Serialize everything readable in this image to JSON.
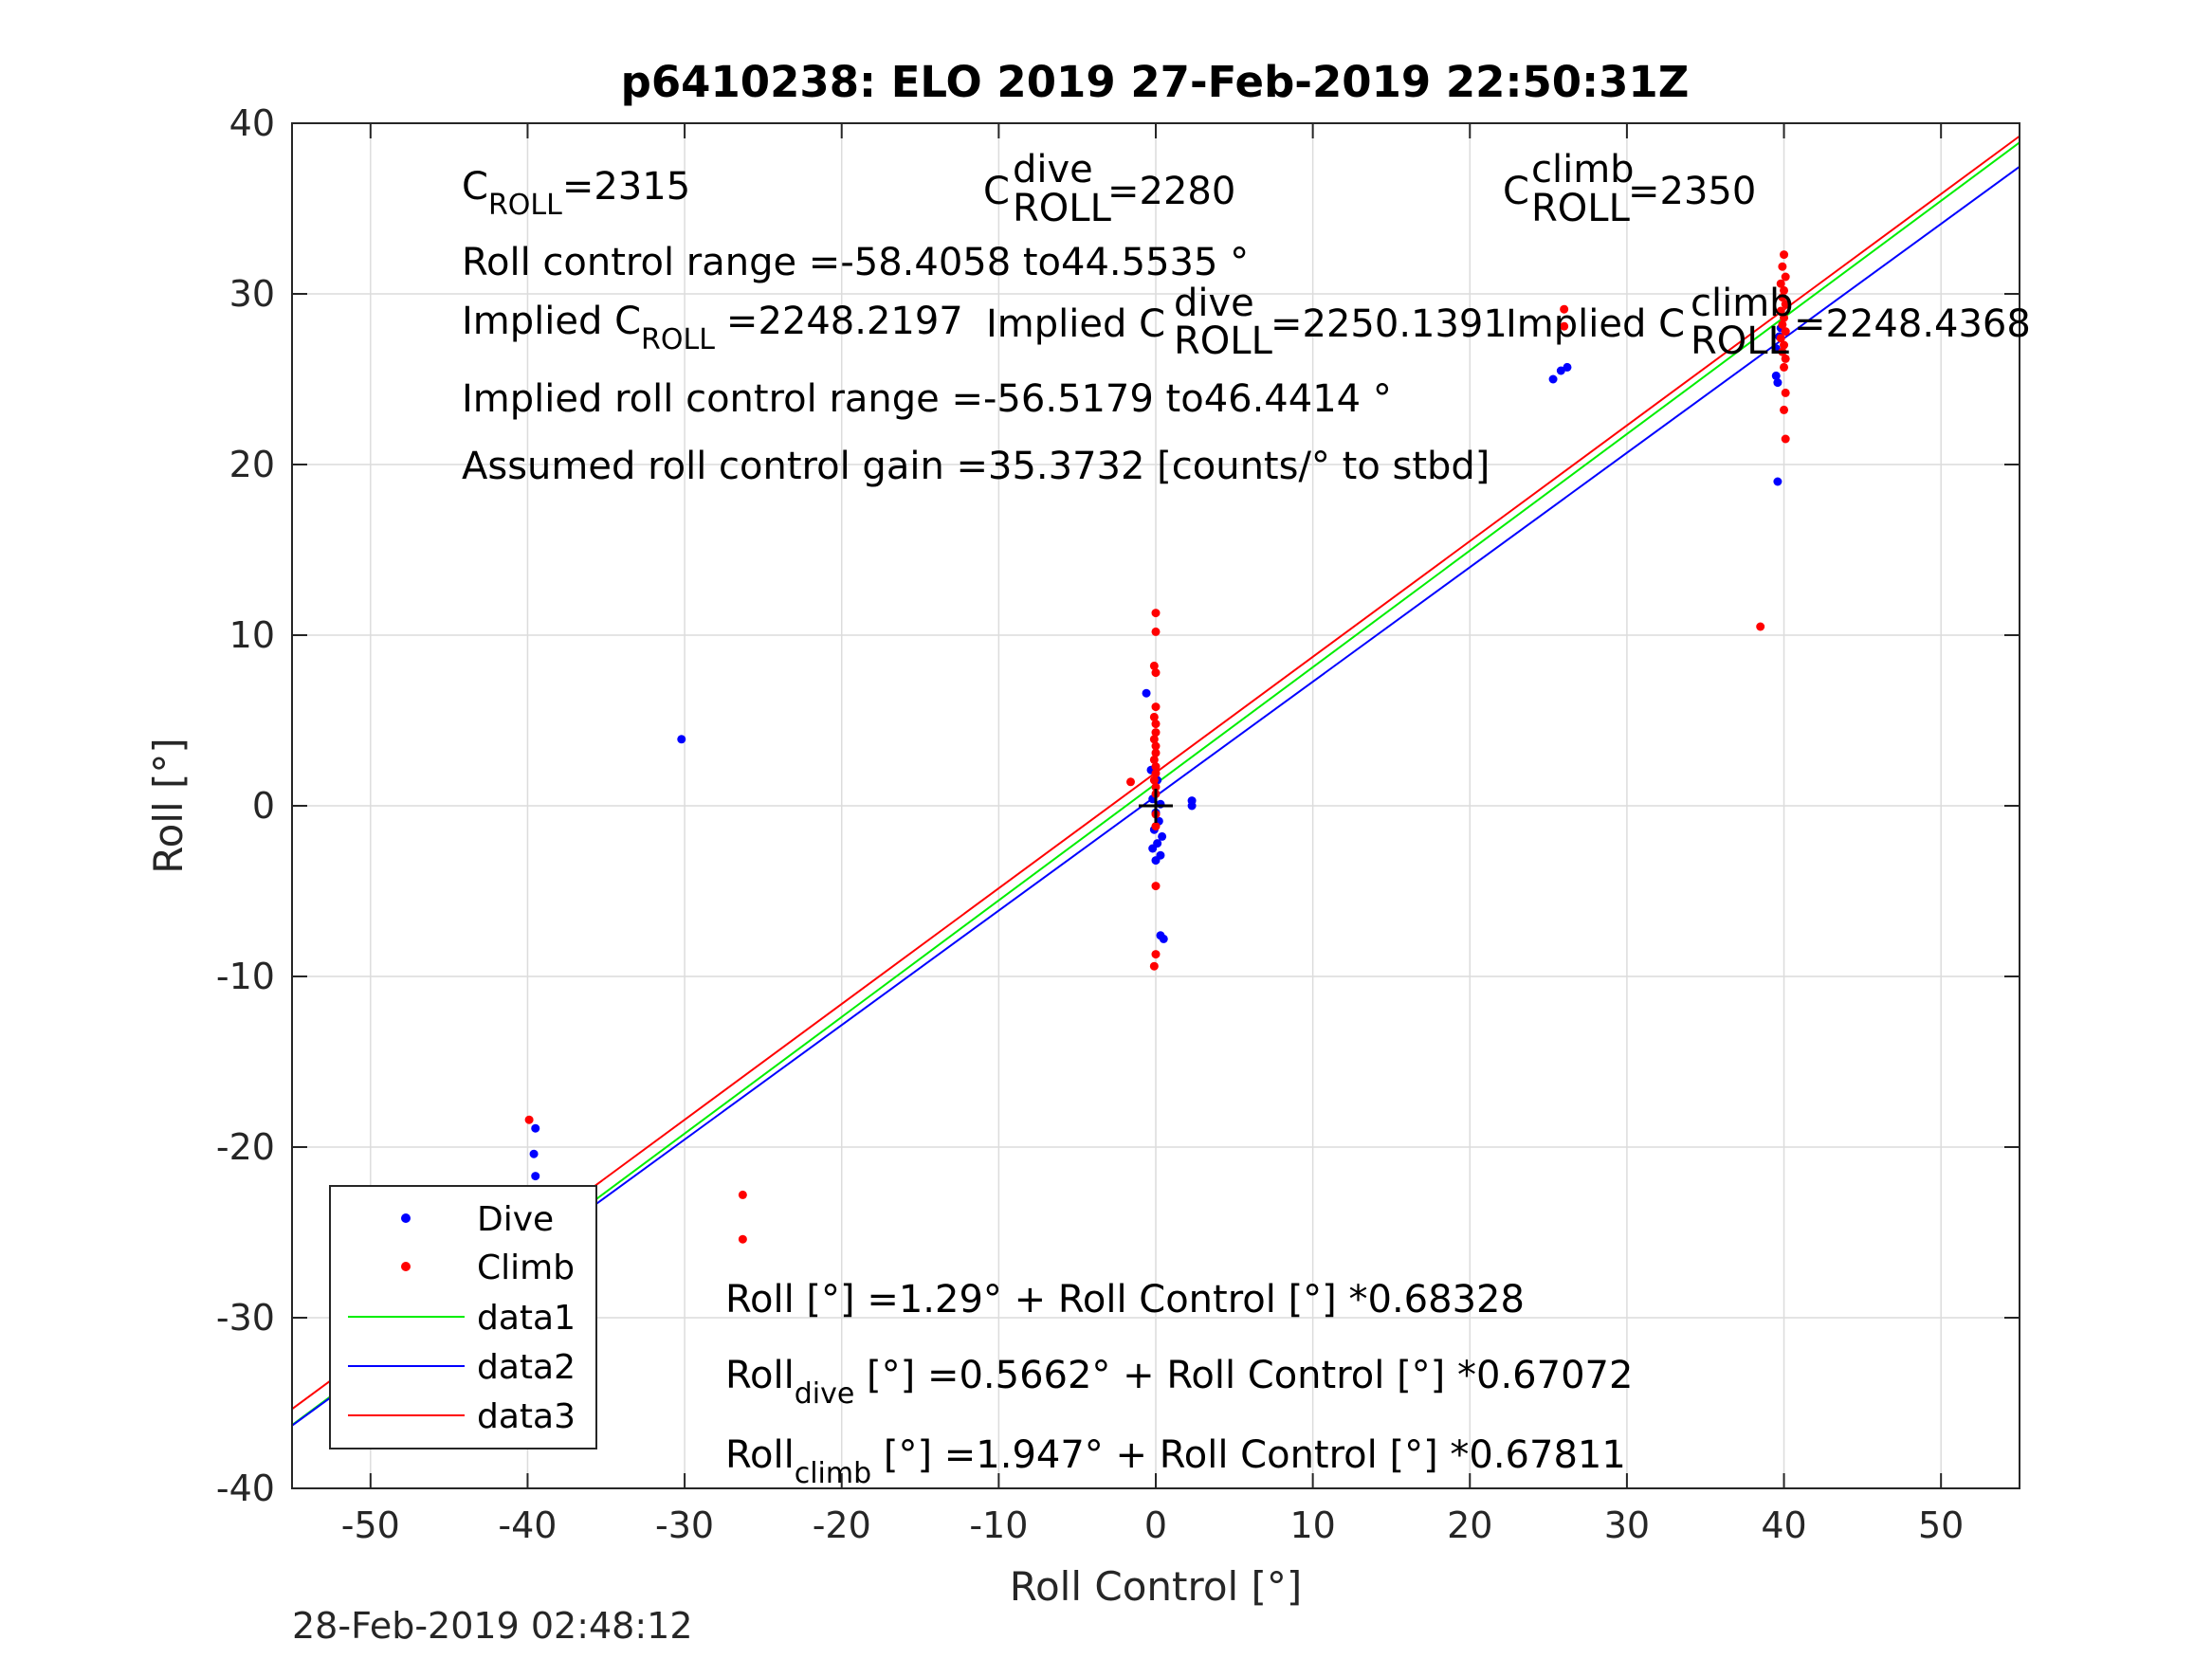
{
  "chart_data": {
    "type": "scatter",
    "title": "p6410238: ELO 2019 27-Feb-2019 22:50:31Z",
    "xlabel": "Roll Control [°]",
    "ylabel": "Roll [°]",
    "xlim": [
      -55,
      55
    ],
    "ylim": [
      -40,
      40
    ],
    "xticks": [
      -50,
      -40,
      -30,
      -20,
      -10,
      0,
      10,
      20,
      30,
      40,
      50
    ],
    "yticks": [
      -40,
      -30,
      -20,
      -10,
      0,
      10,
      20,
      30,
      40
    ],
    "grid": true,
    "legend_position": "bottom-left",
    "timestamp": "28-Feb-2019 02:48:12",
    "annotations": {
      "c_roll": "=2315",
      "c_roll_dive": "=2280",
      "c_roll_climb": "=2350",
      "roll_control_range": "Roll control range =-58.4058 to44.5535 °",
      "implied_c_roll": "=2248.2197",
      "implied_c_roll_dive": "=2250.1391",
      "implied_c_roll_climb": "=2248.4368",
      "implied_range": "Implied roll control range =-56.5179 to46.4414 °",
      "assumed_gain": "Assumed roll control gain =35.3732 [counts/° to stbd]",
      "fit_all": "Roll [°] =1.29° + Roll Control [°] *0.68328",
      "fit_dive": " [°] =0.5662° + Roll Control [°] *0.67072",
      "fit_climb": " [°] =1.947° + Roll Control [°] *0.67811"
    },
    "text_parts": {
      "c": "C",
      "roll_sub": "ROLL",
      "dive_sup": "dive",
      "climb_sup": "climb",
      "implied": "Implied C",
      "roll": "Roll",
      "dive_sub": "dive",
      "climb_sub": "climb"
    },
    "series": [
      {
        "name": "Dive",
        "color": "#0000ff",
        "points": [
          [
            -39.5,
            -18.9
          ],
          [
            -39.6,
            -20.4
          ],
          [
            -39.5,
            -21.7
          ],
          [
            -39.4,
            -22.6
          ],
          [
            -39.6,
            -23.2
          ],
          [
            -39.5,
            -23.8
          ],
          [
            -39.4,
            -24.3
          ],
          [
            -39.6,
            -24.8
          ],
          [
            -39.5,
            -25.2
          ],
          [
            -39.4,
            -25.6
          ],
          [
            -39.6,
            -26.0
          ],
          [
            -39.5,
            -26.4
          ],
          [
            -39.4,
            -26.8
          ],
          [
            -39.6,
            -27.3
          ],
          [
            -39.5,
            -27.8
          ],
          [
            -39.4,
            -28.3
          ],
          [
            -39.6,
            -28.8
          ],
          [
            -39.5,
            -29.3
          ],
          [
            -39.5,
            -30.8
          ],
          [
            -39.5,
            -33.6
          ],
          [
            -30.2,
            3.9
          ],
          [
            -0.6,
            6.6
          ],
          [
            -0.3,
            2.1
          ],
          [
            0.1,
            1.5
          ],
          [
            -0.2,
            0.4
          ],
          [
            0.3,
            0.1
          ],
          [
            0.0,
            -0.4
          ],
          [
            0.2,
            -0.9
          ],
          [
            -0.1,
            -1.4
          ],
          [
            0.4,
            -1.8
          ],
          [
            0.1,
            -2.2
          ],
          [
            -0.2,
            -2.5
          ],
          [
            0.3,
            -2.9
          ],
          [
            0.0,
            -3.2
          ],
          [
            0.3,
            -7.6
          ],
          [
            0.5,
            -7.8
          ],
          [
            2.3,
            0.3
          ],
          [
            2.3,
            0.0
          ],
          [
            25.3,
            25.0
          ],
          [
            25.8,
            25.5
          ],
          [
            26.2,
            25.7
          ],
          [
            39.5,
            25.2
          ],
          [
            39.6,
            24.8
          ],
          [
            39.6,
            19.0
          ],
          [
            39.7,
            27.5
          ],
          [
            39.8,
            28.0
          ],
          [
            39.5,
            26.8
          ]
        ]
      },
      {
        "name": "Climb",
        "color": "#ff0000",
        "points": [
          [
            -39.9,
            -18.4
          ],
          [
            -39.8,
            -22.9
          ],
          [
            -39.7,
            -23.4
          ],
          [
            -39.9,
            -23.9
          ],
          [
            -39.8,
            -24.3
          ],
          [
            -39.7,
            -24.7
          ],
          [
            -39.9,
            -25.0
          ],
          [
            -39.8,
            -25.3
          ],
          [
            -39.7,
            -25.7
          ],
          [
            -26.3,
            -22.8
          ],
          [
            -26.3,
            -25.4
          ],
          [
            -1.6,
            1.4
          ],
          [
            0.0,
            11.3
          ],
          [
            0.0,
            10.2
          ],
          [
            -0.1,
            8.2
          ],
          [
            0.0,
            7.8
          ],
          [
            0.0,
            5.8
          ],
          [
            -0.1,
            5.2
          ],
          [
            0.0,
            4.8
          ],
          [
            0.0,
            4.3
          ],
          [
            -0.1,
            3.9
          ],
          [
            0.0,
            3.5
          ],
          [
            0.0,
            3.1
          ],
          [
            -0.1,
            2.7
          ],
          [
            0.0,
            2.3
          ],
          [
            0.0,
            1.9
          ],
          [
            -0.1,
            1.5
          ],
          [
            0.0,
            1.1
          ],
          [
            0.0,
            0.7
          ],
          [
            0.0,
            -0.5
          ],
          [
            0.0,
            -1.2
          ],
          [
            0.0,
            -4.7
          ],
          [
            0.0,
            -8.7
          ],
          [
            -0.1,
            -9.4
          ],
          [
            26.0,
            29.1
          ],
          [
            26.0,
            28.1
          ],
          [
            38.5,
            10.5
          ],
          [
            40.0,
            32.3
          ],
          [
            39.9,
            31.6
          ],
          [
            40.1,
            31.0
          ],
          [
            39.8,
            30.6
          ],
          [
            40.0,
            30.2
          ],
          [
            39.9,
            29.8
          ],
          [
            40.1,
            29.4
          ],
          [
            39.8,
            29.0
          ],
          [
            40.0,
            28.6
          ],
          [
            39.9,
            28.2
          ],
          [
            40.1,
            27.8
          ],
          [
            39.8,
            27.4
          ],
          [
            40.0,
            27.0
          ],
          [
            39.9,
            26.6
          ],
          [
            40.1,
            26.2
          ],
          [
            40.0,
            25.7
          ],
          [
            40.1,
            24.2
          ],
          [
            40.0,
            23.2
          ],
          [
            40.1,
            21.5
          ]
        ]
      },
      {
        "name": "data1",
        "color": "#00ee00",
        "type": "line",
        "intercept": 1.29,
        "slope": 0.68328
      },
      {
        "name": "data2",
        "color": "#0000ff",
        "type": "line",
        "intercept": 0.5662,
        "slope": 0.67072
      },
      {
        "name": "data3",
        "color": "#ff0000",
        "type": "line",
        "intercept": 1.947,
        "slope": 0.67811
      }
    ],
    "marker": {
      "x": 0,
      "y": 0,
      "symbol": "+"
    }
  }
}
